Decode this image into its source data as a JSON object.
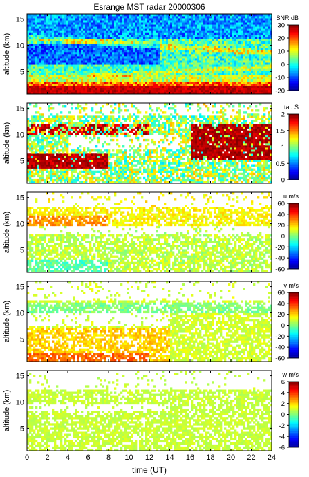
{
  "title": "Esrange MST radar 20000306",
  "xlabel": "time (UT)",
  "colormap": [
    "#00008f",
    "#0000ff",
    "#007fff",
    "#00ffff",
    "#7fff7f",
    "#ffff00",
    "#ff7f00",
    "#ff0000",
    "#7f0000"
  ],
  "chart_data": [
    {
      "type": "heatmap",
      "panel": "snr",
      "xlabel": "",
      "ylabel": "altitude (km)",
      "xlim": [
        0,
        24
      ],
      "ylim": [
        0.7,
        16
      ],
      "x_ticks": [
        0,
        2,
        4,
        6,
        8,
        10,
        12,
        14,
        16,
        18,
        20,
        22,
        24
      ],
      "y_ticks": [
        5,
        10,
        15
      ],
      "colorbar": {
        "label": "SNR dB",
        "range": [
          -20,
          30
        ],
        "ticks": [
          -20,
          -10,
          0,
          10,
          20,
          30
        ]
      },
      "structure": [
        {
          "time": [
            0,
            24
          ],
          "altitude": [
            0.7,
            2.5
          ],
          "value": 25
        },
        {
          "time": [
            0,
            24
          ],
          "altitude": [
            2.5,
            4.5
          ],
          "value": 8
        },
        {
          "time": [
            0,
            12
          ],
          "altitude": [
            6.5,
            10.5
          ],
          "value": -12
        },
        {
          "time": [
            0,
            24
          ],
          "altitude": [
            11,
            16
          ],
          "value": -8
        }
      ]
    },
    {
      "type": "heatmap",
      "panel": "tau",
      "xlabel": "",
      "ylabel": "altitude (km)",
      "xlim": [
        0,
        24
      ],
      "ylim": [
        0.7,
        16
      ],
      "x_ticks": [
        0,
        2,
        4,
        6,
        8,
        10,
        12,
        14,
        16,
        18,
        20,
        22,
        24
      ],
      "y_ticks": [
        5,
        10,
        15
      ],
      "colorbar": {
        "label": "tau S",
        "range": [
          0,
          2
        ],
        "ticks": [
          0,
          0.5,
          1,
          1.5,
          2
        ]
      },
      "structure": [
        {
          "time": [
            0,
            8
          ],
          "altitude": [
            3.5,
            6.5
          ],
          "value": 1.9
        },
        {
          "time": [
            16,
            24
          ],
          "altitude": [
            5,
            12
          ],
          "value": 1.9
        },
        {
          "time": [
            0,
            24
          ],
          "altitude": [
            1,
            3.5
          ],
          "value": 0.9
        }
      ]
    },
    {
      "type": "heatmap",
      "panel": "u",
      "xlabel": "",
      "ylabel": "altitude (km)",
      "xlim": [
        0,
        24
      ],
      "ylim": [
        0.7,
        16
      ],
      "x_ticks": [
        0,
        2,
        4,
        6,
        8,
        10,
        12,
        14,
        16,
        18,
        20,
        22,
        24
      ],
      "y_ticks": [
        5,
        10,
        15
      ],
      "colorbar": {
        "label": "u m/s",
        "range": [
          -60,
          60
        ],
        "ticks": [
          -60,
          -40,
          -20,
          0,
          20,
          40,
          60
        ]
      },
      "structure": [
        {
          "time": [
            0,
            6
          ],
          "altitude": [
            9.5,
            11.5
          ],
          "value": 25
        },
        {
          "time": [
            0,
            24
          ],
          "altitude": [
            1,
            8
          ],
          "value": 5
        }
      ]
    },
    {
      "type": "heatmap",
      "panel": "v",
      "xlabel": "",
      "ylabel": "altitude (km)",
      "xlim": [
        0,
        24
      ],
      "ylim": [
        0.7,
        16
      ],
      "x_ticks": [
        0,
        2,
        4,
        6,
        8,
        10,
        12,
        14,
        16,
        18,
        20,
        22,
        24
      ],
      "y_ticks": [
        5,
        10,
        15
      ],
      "colorbar": {
        "label": "v m/s",
        "range": [
          -60,
          60
        ],
        "ticks": [
          -60,
          -40,
          -20,
          0,
          20,
          40,
          60
        ]
      },
      "structure": [
        {
          "time": [
            0,
            12
          ],
          "altitude": [
            10,
            12
          ],
          "value": -5
        },
        {
          "time": [
            0,
            10
          ],
          "altitude": [
            1,
            3
          ],
          "value": 30
        },
        {
          "time": [
            0,
            24
          ],
          "altitude": [
            3,
            7
          ],
          "value": 12
        }
      ]
    },
    {
      "type": "heatmap",
      "panel": "w",
      "xlabel": "time (UT)",
      "ylabel": "altitude (km)",
      "xlim": [
        0,
        24
      ],
      "ylim": [
        0.7,
        16
      ],
      "x_ticks": [
        0,
        2,
        4,
        6,
        8,
        10,
        12,
        14,
        16,
        18,
        20,
        22,
        24
      ],
      "y_ticks": [
        5,
        10,
        15
      ],
      "colorbar": {
        "label": "w m/s",
        "range": [
          -6,
          6
        ],
        "ticks": [
          -6,
          -4,
          -2,
          0,
          2,
          4,
          6
        ]
      },
      "structure": [
        {
          "time": [
            0,
            24
          ],
          "altitude": [
            1,
            12
          ],
          "value": 0.5
        }
      ]
    }
  ]
}
